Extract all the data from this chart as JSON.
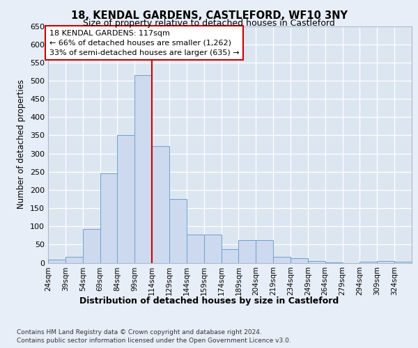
{
  "title1": "18, KENDAL GARDENS, CASTLEFORD, WF10 3NY",
  "title2": "Size of property relative to detached houses in Castleford",
  "xlabel": "Distribution of detached houses by size in Castleford",
  "ylabel": "Number of detached properties",
  "property_label": "18 KENDAL GARDENS: 117sqm",
  "annotation_line1": "← 66% of detached houses are smaller (1,262)",
  "annotation_line2": "33% of semi-detached houses are larger (635) →",
  "bar_color": "#ccd9ee",
  "bar_edge_color": "#6fa0cc",
  "line_color": "#cc0000",
  "fig_bg_color": "#e8eef8",
  "plot_bg_color": "#dce6f1",
  "grid_color": "#ffffff",
  "categories": [
    "24sqm",
    "39sqm",
    "54sqm",
    "69sqm",
    "84sqm",
    "99sqm",
    "114sqm",
    "129sqm",
    "144sqm",
    "159sqm",
    "174sqm",
    "189sqm",
    "204sqm",
    "219sqm",
    "234sqm",
    "249sqm",
    "264sqm",
    "279sqm",
    "294sqm",
    "309sqm",
    "324sqm"
  ],
  "values": [
    8,
    17,
    93,
    245,
    350,
    515,
    320,
    175,
    78,
    78,
    37,
    63,
    63,
    17,
    12,
    5,
    1,
    0,
    2,
    4,
    3
  ],
  "bin_starts": [
    24,
    39,
    54,
    69,
    84,
    99,
    114,
    129,
    144,
    159,
    174,
    189,
    204,
    219,
    234,
    249,
    264,
    279,
    294,
    309,
    324
  ],
  "bin_width": 15,
  "red_line_x": 114,
  "xlim_left": 24,
  "xlim_right": 339,
  "ylim": [
    0,
    650
  ],
  "yticks": [
    0,
    50,
    100,
    150,
    200,
    250,
    300,
    350,
    400,
    450,
    500,
    550,
    600,
    650
  ],
  "footer1": "Contains HM Land Registry data © Crown copyright and database right 2024.",
  "footer2": "Contains public sector information licensed under the Open Government Licence v3.0."
}
